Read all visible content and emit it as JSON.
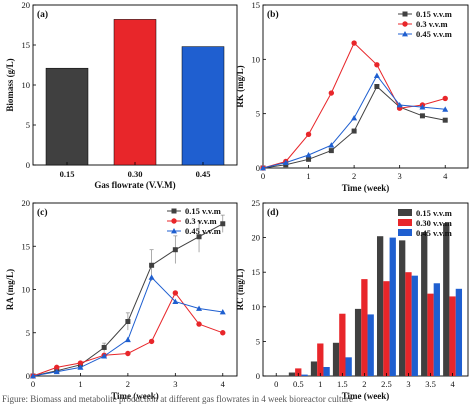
{
  "chart_data": [
    {
      "panel": "(a)",
      "type": "bar",
      "categories": [
        "0.15",
        "0.30",
        "0.45"
      ],
      "values": [
        12.1,
        18.2,
        14.8
      ],
      "colors": [
        "#404040",
        "#e8262a",
        "#1f5fd0"
      ],
      "xlabel": "Gas flowrate (V.V.M)",
      "ylabel": "Biomass (g/L)",
      "ylim": [
        0,
        20
      ],
      "yticks": [
        "0",
        "5",
        "10",
        "15",
        "20"
      ],
      "grid": false
    },
    {
      "panel": "(b)",
      "type": "line",
      "x": [
        0,
        0.5,
        1,
        1.5,
        2,
        2.5,
        3,
        3.5,
        4
      ],
      "series": [
        {
          "name": "0.15 v.v.m",
          "marker": "square",
          "color": "#404040",
          "values": [
            0,
            0.3,
            0.8,
            1.6,
            3.4,
            7.5,
            5.6,
            4.8,
            4.4
          ]
        },
        {
          "name": "0.3 v.v.m",
          "marker": "circle",
          "color": "#e8262a",
          "values": [
            0,
            0.6,
            3.1,
            6.9,
            11.5,
            9.5,
            5.5,
            5.8,
            6.4
          ]
        },
        {
          "name": "0.45 v.v.m",
          "marker": "triangle",
          "color": "#1f5fd0",
          "values": [
            0,
            0.5,
            1.2,
            2.1,
            4.6,
            8.5,
            5.8,
            5.6,
            5.4
          ]
        }
      ],
      "xlabel": "Time (week)",
      "ylabel": "RK (mg/L)",
      "xlim": [
        0,
        4.5
      ],
      "ylim": [
        0,
        15
      ],
      "xticks": [
        "0",
        "1",
        "2",
        "3",
        "4"
      ],
      "yticks": [
        "0",
        "5",
        "10",
        "15"
      ],
      "legend": "top-right",
      "grid": false
    },
    {
      "panel": "(c)",
      "type": "line",
      "x": [
        0,
        0.5,
        1,
        1.5,
        2,
        2.5,
        3,
        3.5,
        4
      ],
      "series": [
        {
          "name": "0.15 v.v.m",
          "marker": "square",
          "color": "#404040",
          "values": [
            0,
            0.6,
            1.3,
            3.3,
            6.3,
            12.8,
            14.6,
            16.1,
            17.6
          ]
        },
        {
          "name": "0.3 v.v.m",
          "marker": "circle",
          "color": "#e8262a",
          "values": [
            0,
            1.0,
            1.5,
            2.4,
            2.6,
            4.0,
            9.6,
            6.0,
            5.0
          ]
        },
        {
          "name": "0.45 v.v.m",
          "marker": "triangle",
          "color": "#1f5fd0",
          "values": [
            0,
            0.5,
            1.0,
            2.3,
            4.2,
            11.4,
            8.6,
            7.8,
            7.4
          ]
        }
      ],
      "errors_black": [
        0,
        0.2,
        0.3,
        0.5,
        1.0,
        1.8,
        1.6,
        1.8,
        1.0
      ],
      "xlabel": "Time (week)",
      "ylabel": "RA (mg/L)",
      "xlim": [
        0,
        4.3
      ],
      "ylim": [
        0,
        20
      ],
      "xticks": [
        "0",
        "1",
        "2",
        "3",
        "4"
      ],
      "yticks": [
        "0",
        "5",
        "10",
        "15",
        "20"
      ],
      "legend": "top-right",
      "grid": false
    },
    {
      "panel": "(d)",
      "type": "bar",
      "categories": [
        "0",
        "0.5",
        "1",
        "1.5",
        "2",
        "2.5",
        "3",
        "3.5",
        "4"
      ],
      "series": [
        {
          "name": "0.15 v.v.m",
          "color": "#404040",
          "values": [
            0,
            0.5,
            2.1,
            4.8,
            9.7,
            20.2,
            19.6,
            20.8,
            22.1
          ]
        },
        {
          "name": "0.30 v.v.m",
          "color": "#e8262a",
          "values": [
            0,
            1.1,
            4.7,
            9.0,
            14.0,
            13.7,
            15.0,
            11.9,
            11.5
          ]
        },
        {
          "name": "0.45 v.v.m",
          "color": "#1f5fd0",
          "values": [
            0,
            0.2,
            1.3,
            2.7,
            8.9,
            20.0,
            14.5,
            13.4,
            12.6
          ]
        }
      ],
      "xlabel": "Time (week)",
      "ylabel": "RC (mg/L)",
      "ylim": [
        0,
        25
      ],
      "yticks": [
        "0",
        "5",
        "10",
        "15",
        "20",
        "25"
      ],
      "legend": "top-right",
      "grid": false
    }
  ],
  "caption": "Figure: Biomass and metabolite production at different gas flowrates in 4 week bioreactor culture"
}
